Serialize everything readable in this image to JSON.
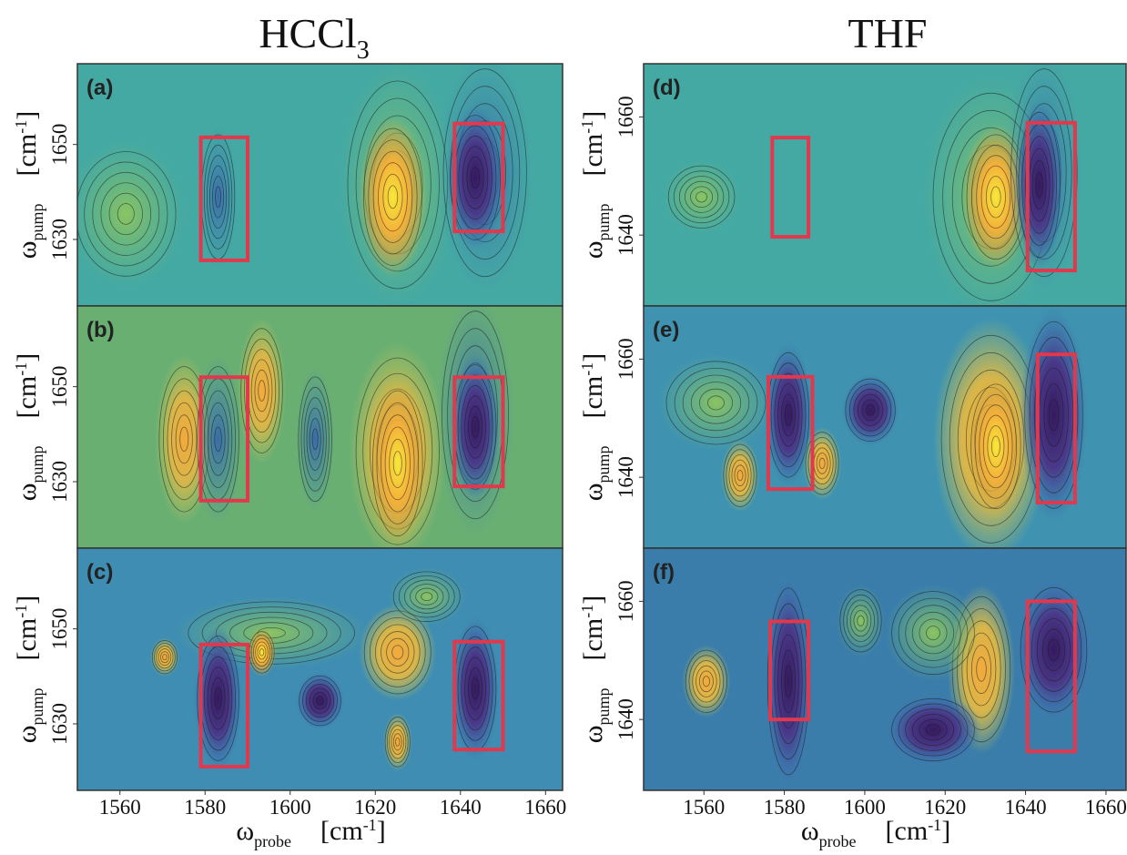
{
  "titles": [
    {
      "text": "HCCl",
      "sub": "3"
    },
    {
      "text": "THF"
    }
  ],
  "chart_data": [
    {
      "type": "contour",
      "label": "(a)",
      "xlim": [
        1550,
        1664
      ],
      "ylim": [
        1616,
        1667
      ],
      "yticks": [
        1630,
        1650
      ],
      "ylabel": {
        "symbol": "ω",
        "sub": "pump",
        "unit": "[cm",
        "unit_sup": "-1",
        "unit_end": "]"
      },
      "box_color": "#e2384d",
      "boxes": [
        {
          "x": [
            1579,
            1590
          ],
          "y": [
            1625.6,
            1651.5
          ]
        },
        {
          "x": [
            1638.6,
            1650
          ],
          "y": [
            1631.7,
            1654.4
          ]
        }
      ]
    },
    {
      "type": "contour",
      "label": "(b)",
      "xlim": [
        1550,
        1664
      ],
      "ylim": [
        1616,
        1667
      ],
      "yticks": [
        1630,
        1650
      ],
      "ylabel": {
        "symbol": "ω",
        "sub": "pump",
        "unit": "[cm",
        "unit_sup": "-1",
        "unit_end": "]"
      },
      "box_color": "#e2384d",
      "boxes": [
        {
          "x": [
            1579,
            1590
          ],
          "y": [
            1626,
            1652
          ]
        },
        {
          "x": [
            1638.6,
            1650
          ],
          "y": [
            1629,
            1652
          ]
        }
      ]
    },
    {
      "type": "contour",
      "label": "(c)",
      "xlim": [
        1550,
        1664
      ],
      "ylim": [
        1616,
        1667
      ],
      "yticks": [
        1630,
        1650
      ],
      "xticks": [
        1560,
        1580,
        1600,
        1620,
        1640,
        1660
      ],
      "ylabel": {
        "symbol": "ω",
        "sub": "pump",
        "unit": "[cm",
        "unit_sup": "-1",
        "unit_end": "]"
      },
      "xlabel": {
        "symbol": "ω",
        "sub": "probe",
        "unit": "[cm",
        "unit_sup": "-1",
        "unit_end": "]"
      },
      "box_color": "#e2384d",
      "boxes": [
        {
          "x": [
            1579,
            1590
          ],
          "y": [
            1621,
            1646.7
          ]
        },
        {
          "x": [
            1638.6,
            1650
          ],
          "y": [
            1624.6,
            1647.3
          ]
        }
      ]
    },
    {
      "type": "contour",
      "label": "(d)",
      "xlim": [
        1545,
        1665
      ],
      "ylim": [
        1628,
        1669
      ],
      "yticks": [
        1640,
        1660
      ],
      "ylabel": {
        "symbol": "ω",
        "sub": "pump",
        "unit": "[cm",
        "unit_sup": "-1",
        "unit_end": "]"
      },
      "box_color": "#e2384d",
      "boxes": [
        {
          "x": [
            1577,
            1586
          ],
          "y": [
            1639.7,
            1656.5
          ]
        },
        {
          "x": [
            1640.5,
            1652.3
          ],
          "y": [
            1634,
            1659
          ]
        }
      ]
    },
    {
      "type": "contour",
      "label": "(e)",
      "xlim": [
        1545,
        1665
      ],
      "ylim": [
        1628,
        1669
      ],
      "yticks": [
        1640,
        1660
      ],
      "ylabel": {
        "symbol": "ω",
        "sub": "pump",
        "unit": "[cm",
        "unit_sup": "-1",
        "unit_end": "]"
      },
      "box_color": "#e2384d",
      "boxes": [
        {
          "x": [
            1576,
            1587
          ],
          "y": [
            1638,
            1657
          ]
        },
        {
          "x": [
            1643,
            1652.3
          ],
          "y": [
            1635.7,
            1660.8
          ]
        }
      ]
    },
    {
      "type": "contour",
      "label": "(f)",
      "xlim": [
        1545,
        1665
      ],
      "ylim": [
        1628,
        1669
      ],
      "yticks": [
        1640,
        1660
      ],
      "xticks": [
        1560,
        1580,
        1600,
        1620,
        1640,
        1660
      ],
      "ylabel": {
        "symbol": "ω",
        "sub": "pump",
        "unit": "[cm",
        "unit_sup": "-1",
        "unit_end": "]"
      },
      "xlabel": {
        "symbol": "ω",
        "sub": "probe",
        "unit": "[cm",
        "unit_sup": "-1",
        "unit_end": "]"
      },
      "box_color": "#e2384d",
      "boxes": [
        {
          "x": [
            1576.5,
            1586
          ],
          "y": [
            1640,
            1656.6
          ]
        },
        {
          "x": [
            1640.5,
            1652.3
          ],
          "y": [
            1634.6,
            1660
          ]
        }
      ]
    }
  ]
}
